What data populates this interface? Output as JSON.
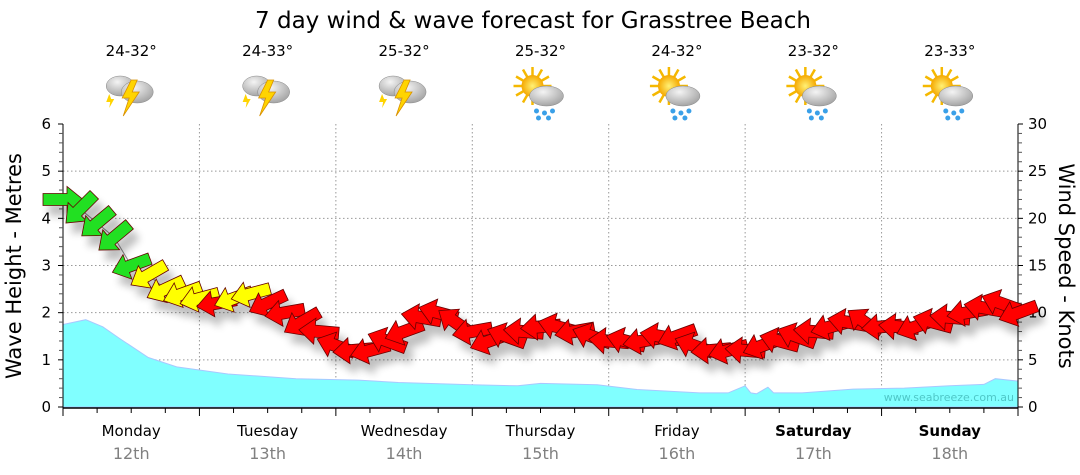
{
  "chart_data": {
    "type": "area",
    "title": "7 day wind & wave forecast for Grasstree Beach",
    "ylabel_left": "Wave Height - Metres",
    "ylabel_right": "Wind Speed - Knots",
    "ylim_left": [
      0,
      6
    ],
    "ylim_right": [
      0,
      30
    ],
    "yticks_left": [
      "0",
      "1",
      "2",
      "3",
      "4",
      "5",
      "6"
    ],
    "yticks_right": [
      "0",
      "5",
      "10",
      "15",
      "20",
      "25",
      "30"
    ],
    "xlim_hours": [
      0,
      168
    ],
    "grid": true,
    "days": [
      {
        "name": "Monday",
        "date": "12th",
        "temp": "24-32°",
        "icon": "storm-icon",
        "weekend": false
      },
      {
        "name": "Tuesday",
        "date": "13th",
        "temp": "24-33°",
        "icon": "storm-icon",
        "weekend": false
      },
      {
        "name": "Wednesday",
        "date": "14th",
        "temp": "25-32°",
        "icon": "storm-icon",
        "weekend": false
      },
      {
        "name": "Thursday",
        "date": "15th",
        "temp": "25-32°",
        "icon": "sun-rain-icon",
        "weekend": false
      },
      {
        "name": "Friday",
        "date": "16th",
        "temp": "24-32°",
        "icon": "sun-rain-icon",
        "weekend": false
      },
      {
        "name": "Saturday",
        "date": "17th",
        "temp": "23-32°",
        "icon": "sun-rain-icon",
        "weekend": true
      },
      {
        "name": "Sunday",
        "date": "18th",
        "temp": "23-33°",
        "icon": "sun-rain-icon",
        "weekend": true
      }
    ],
    "wave_series": {
      "name": "Wave height (m)",
      "color": "#80ffff",
      "hours": [
        0,
        4,
        7,
        10,
        15,
        20,
        29,
        41,
        52,
        59,
        72,
        80,
        84,
        94,
        101,
        112,
        117,
        120,
        121,
        122,
        124,
        125,
        130,
        139,
        148,
        156,
        162,
        164,
        168
      ],
      "values": [
        1.75,
        1.85,
        1.7,
        1.45,
        1.05,
        0.85,
        0.7,
        0.6,
        0.57,
        0.52,
        0.47,
        0.45,
        0.5,
        0.47,
        0.37,
        0.3,
        0.3,
        0.45,
        0.3,
        0.28,
        0.42,
        0.3,
        0.3,
        0.38,
        0.4,
        0.45,
        0.48,
        0.6,
        0.55
      ]
    },
    "wind_series": {
      "name": "Wind speed (knots)",
      "hours": [
        0,
        3,
        6,
        9,
        12,
        15,
        18,
        21,
        24,
        27,
        30,
        33,
        36,
        39,
        42,
        45,
        48,
        51,
        54,
        57,
        60,
        63,
        66,
        69,
        72,
        75,
        78,
        81,
        84,
        87,
        90,
        93,
        96,
        99,
        102,
        105,
        108,
        111,
        114,
        117,
        120,
        123,
        126,
        129,
        132,
        135,
        138,
        141,
        144,
        147,
        150,
        153,
        156,
        159,
        162,
        165,
        168
      ],
      "values": [
        22,
        21,
        19.5,
        18,
        15,
        14,
        12.5,
        12,
        11.5,
        11,
        11.5,
        12,
        11,
        10,
        9,
        8,
        6.5,
        6,
        6,
        7,
        8,
        9.5,
        10,
        9,
        8,
        7,
        7.5,
        8,
        8.5,
        8.5,
        8,
        7.5,
        7,
        7,
        7,
        7.5,
        7.5,
        6.5,
        6,
        6,
        6,
        6.5,
        7,
        7.5,
        8,
        8.5,
        9,
        9,
        8.5,
        8.5,
        8.5,
        9,
        9.5,
        10,
        10.5,
        11,
        10
      ],
      "arrow_heading_deg": [
        0,
        135,
        140,
        140,
        160,
        150,
        155,
        160,
        165,
        170,
        160,
        165,
        155,
        170,
        150,
        185,
        200,
        175,
        165,
        200,
        160,
        190,
        195,
        215,
        170,
        160,
        200,
        185,
        175,
        195,
        170,
        200,
        185,
        195,
        170,
        190,
        160,
        200,
        175,
        165,
        185,
        160,
        195,
        200,
        185,
        165,
        190,
        215,
        175,
        185,
        160,
        195,
        185,
        170,
        190,
        200,
        160
      ],
      "color_thresholds": {
        "green_min": 15,
        "yellow_min": 11.5
      },
      "colors": {
        "green": "#22e022",
        "yellow": "#ffff00",
        "red": "#ff0000"
      }
    },
    "watermark": "www.seabreeze.com.au"
  }
}
